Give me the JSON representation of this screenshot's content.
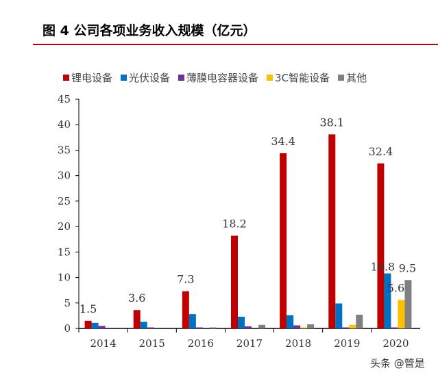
{
  "title": "图 4 公司各项业务收入规模（亿元）",
  "watermark": "头条 @管是",
  "chart_data": {
    "type": "bar",
    "title": "图 4 公司各项业务收入规模（亿元）",
    "categories": [
      "2014",
      "2015",
      "2016",
      "2017",
      "2018",
      "2019",
      "2020"
    ],
    "ylim": [
      0,
      45
    ],
    "yticks": [
      0,
      5,
      10,
      15,
      20,
      25,
      30,
      35,
      40,
      45
    ],
    "grid": false,
    "legend": "top",
    "series": [
      {
        "name": "锂电设备",
        "color": "#c00000",
        "values": [
          1.5,
          3.6,
          7.3,
          18.2,
          34.4,
          38.1,
          32.4
        ],
        "labels": [
          "1.5",
          "3.6",
          "7.3",
          "18.2",
          "34.4",
          "38.1",
          "32.4"
        ]
      },
      {
        "name": "光伏设备",
        "color": "#0070c0",
        "values": [
          1.1,
          1.3,
          2.8,
          2.3,
          2.6,
          4.9,
          10.8
        ],
        "labels": [
          "",
          "",
          "",
          "",
          "",
          "",
          "10.8"
        ]
      },
      {
        "name": "薄膜电容器设备",
        "color": "#7030a0",
        "values": [
          0.5,
          0.2,
          0.2,
          0.4,
          0.6,
          0.2,
          0.2
        ],
        "labels": [
          "",
          "",
          "",
          "",
          "",
          "",
          ""
        ]
      },
      {
        "name": "3C智能设备",
        "color": "#ffc000",
        "values": [
          0,
          0,
          0,
          0,
          0.2,
          0.7,
          5.6
        ],
        "labels": [
          "",
          "",
          "",
          "",
          "",
          "",
          "5.6"
        ]
      },
      {
        "name": "其他",
        "color": "#808080",
        "values": [
          0,
          0,
          0.2,
          0.7,
          0.8,
          2.7,
          9.5
        ],
        "labels": [
          "",
          "",
          "",
          "",
          "",
          "",
          "9.5"
        ]
      }
    ]
  }
}
